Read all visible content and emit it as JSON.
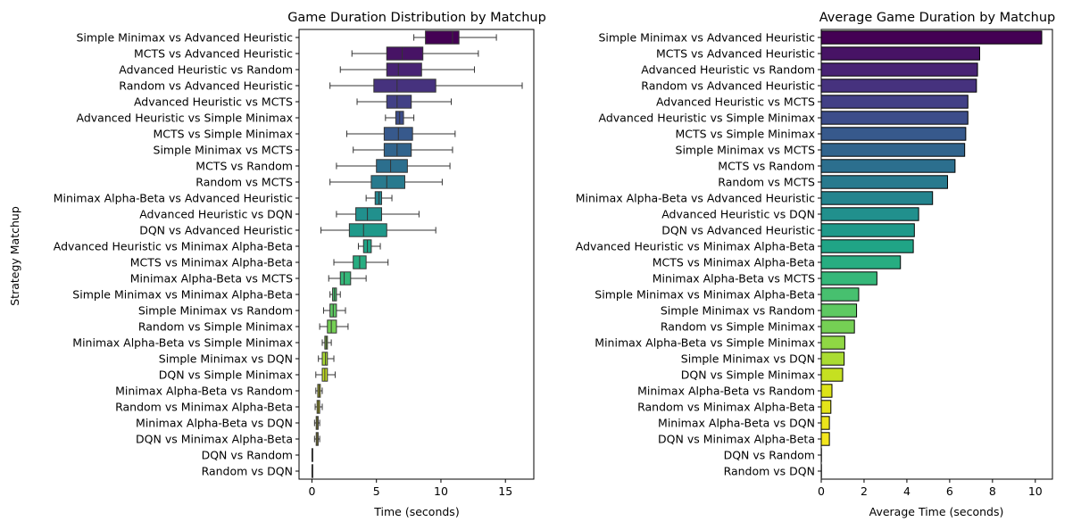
{
  "chart_data": [
    {
      "type": "box",
      "title": "Game Duration Distribution by Matchup",
      "xlabel": "Time (seconds)",
      "ylabel": "Strategy Matchup",
      "xlim": [
        -1,
        17.2
      ],
      "xticks": [
        0,
        5,
        10,
        15
      ],
      "grid": false,
      "categories": [
        "Simple Minimax vs Advanced Heuristic",
        "MCTS vs Advanced Heuristic",
        "Advanced Heuristic vs Random",
        "Random vs Advanced Heuristic",
        "Advanced Heuristic vs MCTS",
        "Advanced Heuristic vs Simple Minimax",
        "MCTS vs Simple Minimax",
        "Simple Minimax vs MCTS",
        "MCTS vs Random",
        "Random vs MCTS",
        "Minimax Alpha-Beta vs Advanced Heuristic",
        "Advanced Heuristic vs DQN",
        "DQN vs Advanced Heuristic",
        "Advanced Heuristic vs Minimax Alpha-Beta",
        "MCTS vs Minimax Alpha-Beta",
        "Minimax Alpha-Beta vs MCTS",
        "Simple Minimax vs Minimax Alpha-Beta",
        "Simple Minimax vs Random",
        "Random vs Simple Minimax",
        "Minimax Alpha-Beta vs Simple Minimax",
        "Simple Minimax vs DQN",
        "DQN vs Simple Minimax",
        "Minimax Alpha-Beta vs Random",
        "Random vs Minimax Alpha-Beta",
        "Minimax Alpha-Beta vs DQN",
        "DQN vs Minimax Alpha-Beta",
        "DQN vs Random",
        "Random vs DQN"
      ],
      "boxes": [
        {
          "whislo": 7.9,
          "q1": 8.8,
          "med": 10.9,
          "q3": 11.4,
          "whishi": 14.3,
          "color": "#440154"
        },
        {
          "whislo": 3.1,
          "q1": 5.8,
          "med": 7.0,
          "q3": 8.6,
          "whishi": 12.9,
          "color": "#471365"
        },
        {
          "whislo": 2.2,
          "q1": 5.8,
          "med": 6.7,
          "q3": 8.5,
          "whishi": 12.6,
          "color": "#482374"
        },
        {
          "whislo": 1.4,
          "q1": 4.8,
          "med": 6.6,
          "q3": 9.6,
          "whishi": 16.3,
          "color": "#46327e"
        },
        {
          "whislo": 3.5,
          "q1": 5.8,
          "med": 6.6,
          "q3": 7.7,
          "whishi": 10.8,
          "color": "#424086"
        },
        {
          "whislo": 5.7,
          "q1": 6.5,
          "med": 6.8,
          "q3": 7.1,
          "whishi": 7.9,
          "color": "#3d4d8a"
        },
        {
          "whislo": 2.7,
          "q1": 5.6,
          "med": 6.7,
          "q3": 7.8,
          "whishi": 11.1,
          "color": "#37598c"
        },
        {
          "whislo": 3.2,
          "q1": 5.6,
          "med": 6.6,
          "q3": 7.7,
          "whishi": 10.9,
          "color": "#31648d"
        },
        {
          "whislo": 1.9,
          "q1": 5.0,
          "med": 6.1,
          "q3": 7.4,
          "whishi": 10.7,
          "color": "#2c6f8e"
        },
        {
          "whislo": 1.4,
          "q1": 4.6,
          "med": 5.8,
          "q3": 7.2,
          "whishi": 10.1,
          "color": "#287a8e"
        },
        {
          "whislo": 4.2,
          "q1": 4.9,
          "med": 5.2,
          "q3": 5.4,
          "whishi": 6.2,
          "color": "#24848e"
        },
        {
          "whislo": 1.9,
          "q1": 3.4,
          "med": 4.3,
          "q3": 5.4,
          "whishi": 8.3,
          "color": "#21908d"
        },
        {
          "whislo": 0.7,
          "q1": 2.9,
          "med": 4.0,
          "q3": 5.8,
          "whishi": 9.6,
          "color": "#1f998a"
        },
        {
          "whislo": 3.6,
          "q1": 4.0,
          "med": 4.3,
          "q3": 4.6,
          "whishi": 5.3,
          "color": "#20a486"
        },
        {
          "whislo": 1.7,
          "q1": 3.2,
          "med": 3.7,
          "q3": 4.2,
          "whishi": 5.9,
          "color": "#27ad81"
        },
        {
          "whislo": 1.3,
          "q1": 2.2,
          "med": 2.5,
          "q3": 3.0,
          "whishi": 4.2,
          "color": "#35b779"
        },
        {
          "whislo": 1.4,
          "q1": 1.6,
          "med": 1.75,
          "q3": 1.9,
          "whishi": 2.2,
          "color": "#47c06f"
        },
        {
          "whislo": 0.9,
          "q1": 1.4,
          "med": 1.65,
          "q3": 1.9,
          "whishi": 2.6,
          "color": "#5ec962"
        },
        {
          "whislo": 0.6,
          "q1": 1.2,
          "med": 1.5,
          "q3": 1.9,
          "whishi": 2.8,
          "color": "#75d054"
        },
        {
          "whislo": 0.8,
          "q1": 1.0,
          "med": 1.1,
          "q3": 1.2,
          "whishi": 1.5,
          "color": "#8fd744"
        },
        {
          "whislo": 0.5,
          "q1": 0.8,
          "med": 1.05,
          "q3": 1.2,
          "whishi": 1.7,
          "color": "#aadc32"
        },
        {
          "whislo": 0.3,
          "q1": 0.8,
          "med": 1.0,
          "q3": 1.2,
          "whishi": 1.8,
          "color": "#c5e021"
        },
        {
          "whislo": 0.3,
          "q1": 0.45,
          "med": 0.55,
          "q3": 0.65,
          "whishi": 0.8,
          "color": "#dde318"
        },
        {
          "whislo": 0.25,
          "q1": 0.4,
          "med": 0.5,
          "q3": 0.6,
          "whishi": 0.8,
          "color": "#e4e419"
        },
        {
          "whislo": 0.2,
          "q1": 0.33,
          "med": 0.4,
          "q3": 0.48,
          "whishi": 0.6,
          "color": "#ece51b"
        },
        {
          "whislo": 0.2,
          "q1": 0.33,
          "med": 0.4,
          "q3": 0.48,
          "whishi": 0.6,
          "color": "#f3e61e"
        },
        {
          "whislo": 0.0,
          "q1": 0.0,
          "med": 0.01,
          "q3": 0.02,
          "whishi": 0.03,
          "color": "#f8e621"
        },
        {
          "whislo": 0.0,
          "q1": 0.0,
          "med": 0.01,
          "q3": 0.02,
          "whishi": 0.03,
          "color": "#fde725"
        }
      ]
    },
    {
      "type": "bar",
      "orientation": "horizontal",
      "title": "Average Game Duration by Matchup",
      "xlabel": "Average Time (seconds)",
      "ylabel": "",
      "xlim": [
        0,
        10.8
      ],
      "xticks": [
        0,
        2,
        4,
        6,
        8,
        10
      ],
      "grid": false,
      "categories": [
        "Simple Minimax vs Advanced Heuristic",
        "MCTS vs Advanced Heuristic",
        "Advanced Heuristic vs Random",
        "Random vs Advanced Heuristic",
        "Advanced Heuristic vs MCTS",
        "Advanced Heuristic vs Simple Minimax",
        "MCTS vs Simple Minimax",
        "Simple Minimax vs MCTS",
        "MCTS vs Random",
        "Random vs MCTS",
        "Minimax Alpha-Beta vs Advanced Heuristic",
        "Advanced Heuristic vs DQN",
        "DQN vs Advanced Heuristic",
        "Advanced Heuristic vs Minimax Alpha-Beta",
        "MCTS vs Minimax Alpha-Beta",
        "Minimax Alpha-Beta vs MCTS",
        "Simple Minimax vs Minimax Alpha-Beta",
        "Simple Minimax vs Random",
        "Random vs Simple Minimax",
        "Minimax Alpha-Beta vs Simple Minimax",
        "Simple Minimax vs DQN",
        "DQN vs Simple Minimax",
        "Minimax Alpha-Beta vs Random",
        "Random vs Minimax Alpha-Beta",
        "Minimax Alpha-Beta vs DQN",
        "DQN vs Minimax Alpha-Beta",
        "DQN vs Random",
        "Random vs DQN"
      ],
      "values": [
        10.3,
        7.4,
        7.3,
        7.25,
        6.85,
        6.85,
        6.75,
        6.7,
        6.25,
        5.9,
        5.2,
        4.55,
        4.35,
        4.3,
        3.7,
        2.6,
        1.75,
        1.65,
        1.55,
        1.1,
        1.07,
        1.0,
        0.5,
        0.45,
        0.38,
        0.38,
        0.01,
        0.01
      ],
      "colors": [
        "#440154",
        "#471365",
        "#482374",
        "#46327e",
        "#424086",
        "#3d4d8a",
        "#37598c",
        "#31648d",
        "#2c6f8e",
        "#287a8e",
        "#24848e",
        "#21908d",
        "#1f998a",
        "#20a486",
        "#27ad81",
        "#35b779",
        "#47c06f",
        "#5ec962",
        "#75d054",
        "#8fd744",
        "#aadc32",
        "#c5e021",
        "#dde318",
        "#e4e419",
        "#ece51b",
        "#f3e61e",
        "#f8e621",
        "#fde725"
      ]
    }
  ]
}
